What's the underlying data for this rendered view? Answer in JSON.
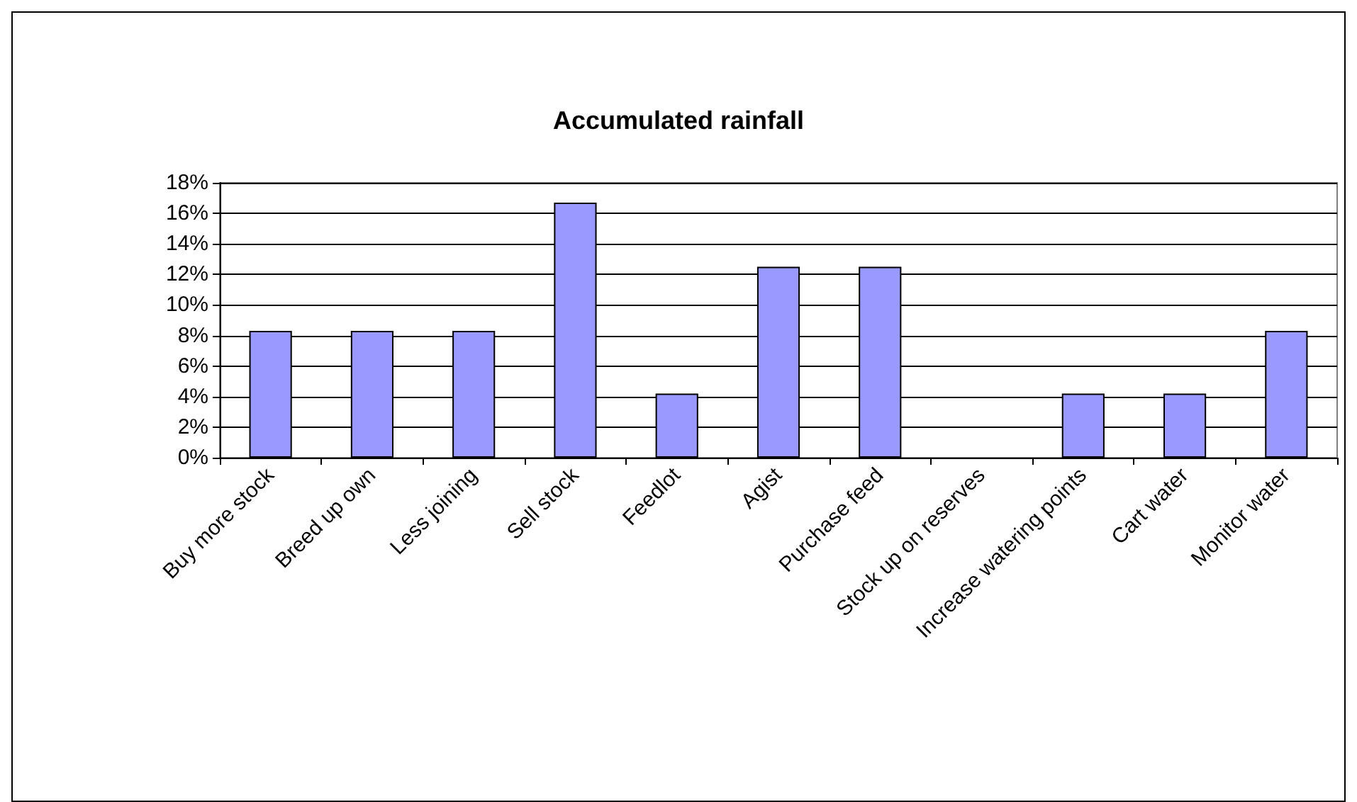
{
  "chart_data": {
    "type": "bar",
    "title": "Accumulated rainfall",
    "categories": [
      "Buy more stock",
      "Breed up own",
      "Less joining",
      "Sell stock",
      "Feedlot",
      "Agist",
      "Purchase feed",
      "Stock up on reserves",
      "Increase watering points",
      "Cart water",
      "Monitor water"
    ],
    "values": [
      8.3,
      8.3,
      8.3,
      16.7,
      4.2,
      12.5,
      12.5,
      0,
      4.2,
      4.2,
      8.3
    ],
    "color": "#9999ff",
    "ylim": [
      0,
      18
    ],
    "yticks": [
      {
        "value": 0,
        "label": "0%"
      },
      {
        "value": 2,
        "label": "2%"
      },
      {
        "value": 4,
        "label": "4%"
      },
      {
        "value": 6,
        "label": "6%"
      },
      {
        "value": 8,
        "label": "8%"
      },
      {
        "value": 10,
        "label": "10%"
      },
      {
        "value": 12,
        "label": "12%"
      },
      {
        "value": 14,
        "label": "14%"
      },
      {
        "value": 16,
        "label": "16%"
      },
      {
        "value": 18,
        "label": "18%"
      }
    ],
    "grid": true
  }
}
